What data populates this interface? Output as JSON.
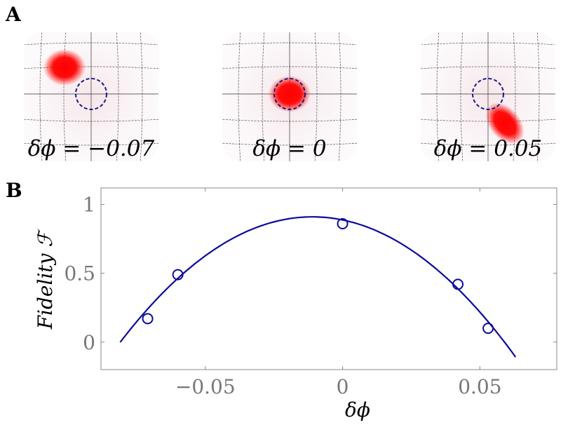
{
  "panels": {
    "a_label": "A",
    "b_label": "B"
  },
  "wigner": [
    {
      "label": "δϕ = −0.07",
      "blob_offset": [
        -0.38,
        -0.38
      ]
    },
    {
      "label": "δϕ = 0",
      "blob_offset": [
        0.0,
        0.0
      ]
    },
    {
      "label": "δϕ = 0.05",
      "blob_offset": [
        0.24,
        0.42
      ]
    }
  ],
  "colors": {
    "curve": "#0a0a9a",
    "markers": "#0a0a9a",
    "target_circle": "#1a1a80",
    "blob": "#ff0000",
    "frame": "#888888"
  },
  "chart_data": {
    "type": "scatter",
    "xlabel": "δϕ",
    "ylabel": "Fidelity ℱ",
    "xlim": [
      -0.088,
      0.078
    ],
    "ylim": [
      -0.2,
      1.12
    ],
    "xticks": [
      -0.05,
      0,
      0.05
    ],
    "xtick_labels": [
      "−0.05",
      "0",
      "0.05"
    ],
    "yticks": [
      0,
      0.5,
      1
    ],
    "ytick_labels": [
      "0",
      "0.5",
      "1"
    ],
    "grid": false,
    "series": [
      {
        "kind": "points",
        "x": [
          -0.071,
          -0.06,
          0.0,
          0.042,
          0.053
        ],
        "y": [
          0.17,
          0.49,
          0.86,
          0.42,
          0.1
        ]
      },
      {
        "kind": "fit_curve",
        "x_range": [
          -0.081,
          0.063
        ],
        "vertex": [
          -0.011,
          0.91
        ],
        "curvature": 186.0
      }
    ]
  }
}
